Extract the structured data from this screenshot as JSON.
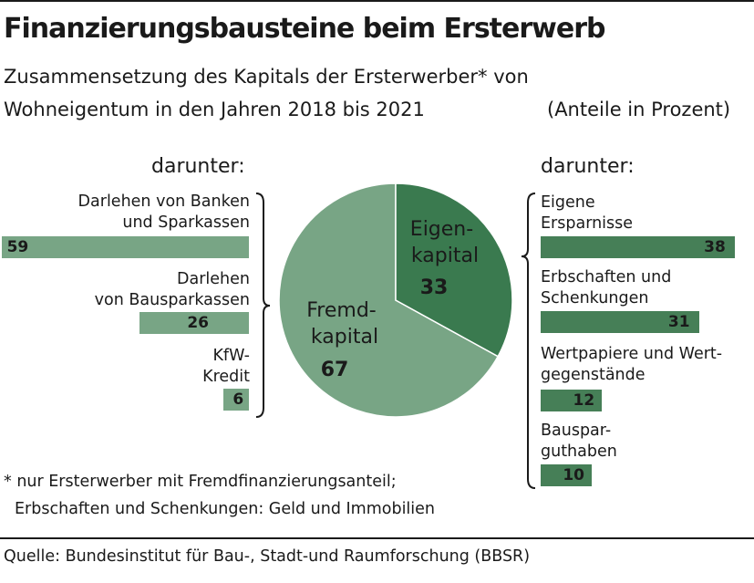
{
  "title": "Finanzierungsbausteine beim Ersterwerb",
  "subtitle_line1": "Zusammensetzung des Kapitals der Ersterwerber* von",
  "subtitle_line2": "Wohneigentum in den Jahren 2018 bis 2021",
  "unit_note": "(Anteile in Prozent)",
  "colors": {
    "fremd": "#78a585",
    "eigen": "#3a7a4f",
    "bar_left": "#78a585",
    "bar_right": "#467f57"
  },
  "chart_data": [
    {
      "type": "pie",
      "slices": [
        {
          "label_line1": "Eigen-",
          "label_line2": "kapital",
          "value": 33
        },
        {
          "label_line1": "Fremd-",
          "label_line2": "kapital",
          "value": 67
        }
      ]
    },
    {
      "type": "bar",
      "header": "darunter:",
      "categories": [
        [
          "Darlehen von Banken",
          "und Sparkassen"
        ],
        [
          "Darlehen",
          "von Bausparkassen"
        ],
        [
          "KfW-",
          "Kredit"
        ]
      ],
      "values": [
        59,
        26,
        6
      ]
    },
    {
      "type": "bar",
      "header": "darunter:",
      "categories": [
        [
          "Eigene",
          "Ersparnisse"
        ],
        [
          "Erbschaften und",
          "Schenkungen"
        ],
        [
          "Wertpapiere und Wert-",
          "gegenstände"
        ],
        [
          "Bauspar-",
          "guthaben"
        ]
      ],
      "values": [
        38,
        31,
        12,
        10
      ]
    }
  ],
  "footnote_line1": "* nur Ersterwerber mit Fremdfinanzierungsanteil;",
  "footnote_line2": "Erbschaften und Schenkungen: Geld und Immobilien",
  "source": "Quelle: Bundesinstitut für Bau-, Stadt-und Raumforschung (BBSR)"
}
